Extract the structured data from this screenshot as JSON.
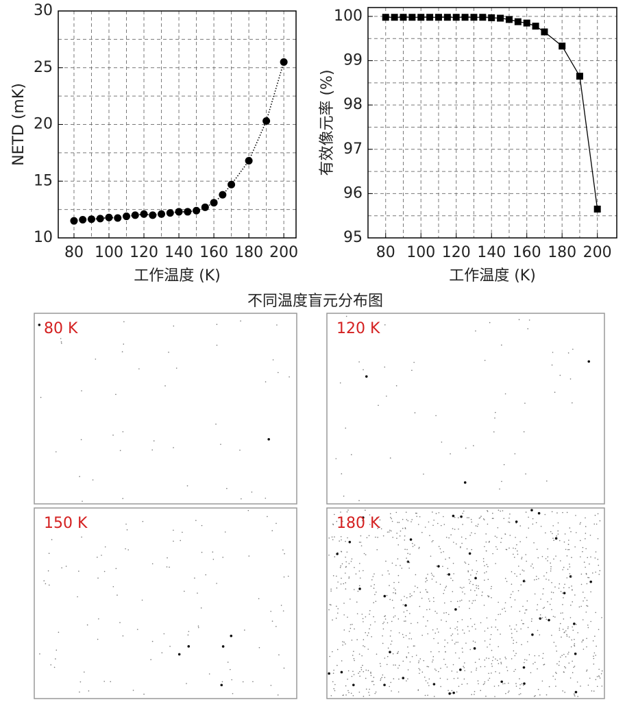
{
  "chart_data": [
    {
      "type": "line",
      "xlabel": "工作温度 (K)",
      "ylabel": "NETD (mK)",
      "x": [
        80,
        85,
        90,
        95,
        100,
        105,
        110,
        115,
        120,
        125,
        130,
        135,
        140,
        145,
        150,
        155,
        160,
        165,
        170,
        180,
        190,
        200
      ],
      "series": [
        {
          "color": "#000000",
          "marker": "circle",
          "line_style": "dotted",
          "values": [
            11.5,
            11.6,
            11.65,
            11.7,
            11.8,
            11.75,
            11.9,
            12.0,
            12.1,
            12.0,
            12.1,
            12.2,
            12.3,
            12.3,
            12.4,
            12.7,
            13.1,
            13.8,
            14.7,
            16.8,
            20.3,
            25.5
          ]
        }
      ],
      "xlim": [
        71,
        207
      ],
      "ylim": [
        10,
        30
      ],
      "xticks": [
        80,
        100,
        120,
        140,
        160,
        180,
        200
      ],
      "yticks": [
        10,
        15,
        20,
        25,
        30
      ],
      "grid": true,
      "minor_grid": true
    },
    {
      "type": "line",
      "xlabel": "工作温度 (K)",
      "ylabel": "有效像元率 (%)",
      "x": [
        80,
        85,
        90,
        95,
        100,
        105,
        110,
        115,
        120,
        125,
        130,
        135,
        140,
        145,
        150,
        155,
        160,
        165,
        170,
        180,
        190,
        200
      ],
      "series": [
        {
          "color": "#000000",
          "marker": "square",
          "line_style": "solid",
          "values": [
            99.98,
            99.98,
            99.98,
            99.98,
            99.98,
            99.98,
            99.98,
            99.98,
            99.98,
            99.98,
            99.98,
            99.98,
            99.97,
            99.96,
            99.93,
            99.88,
            99.85,
            99.78,
            99.65,
            99.33,
            98.65,
            95.65
          ]
        }
      ],
      "xlim": [
        70,
        211
      ],
      "ylim": [
        95,
        100.2
      ],
      "xticks": [
        80,
        100,
        120,
        140,
        160,
        180,
        200
      ],
      "yticks": [
        95,
        96,
        97,
        98,
        99,
        100
      ],
      "grid": true,
      "minor_grid": true
    }
  ],
  "figure_title": "不同温度盲元分布图",
  "panels": [
    {
      "label": "80 K"
    },
    {
      "label": "120 K"
    },
    {
      "label": "150 K"
    },
    {
      "label": "180 K"
    }
  ]
}
